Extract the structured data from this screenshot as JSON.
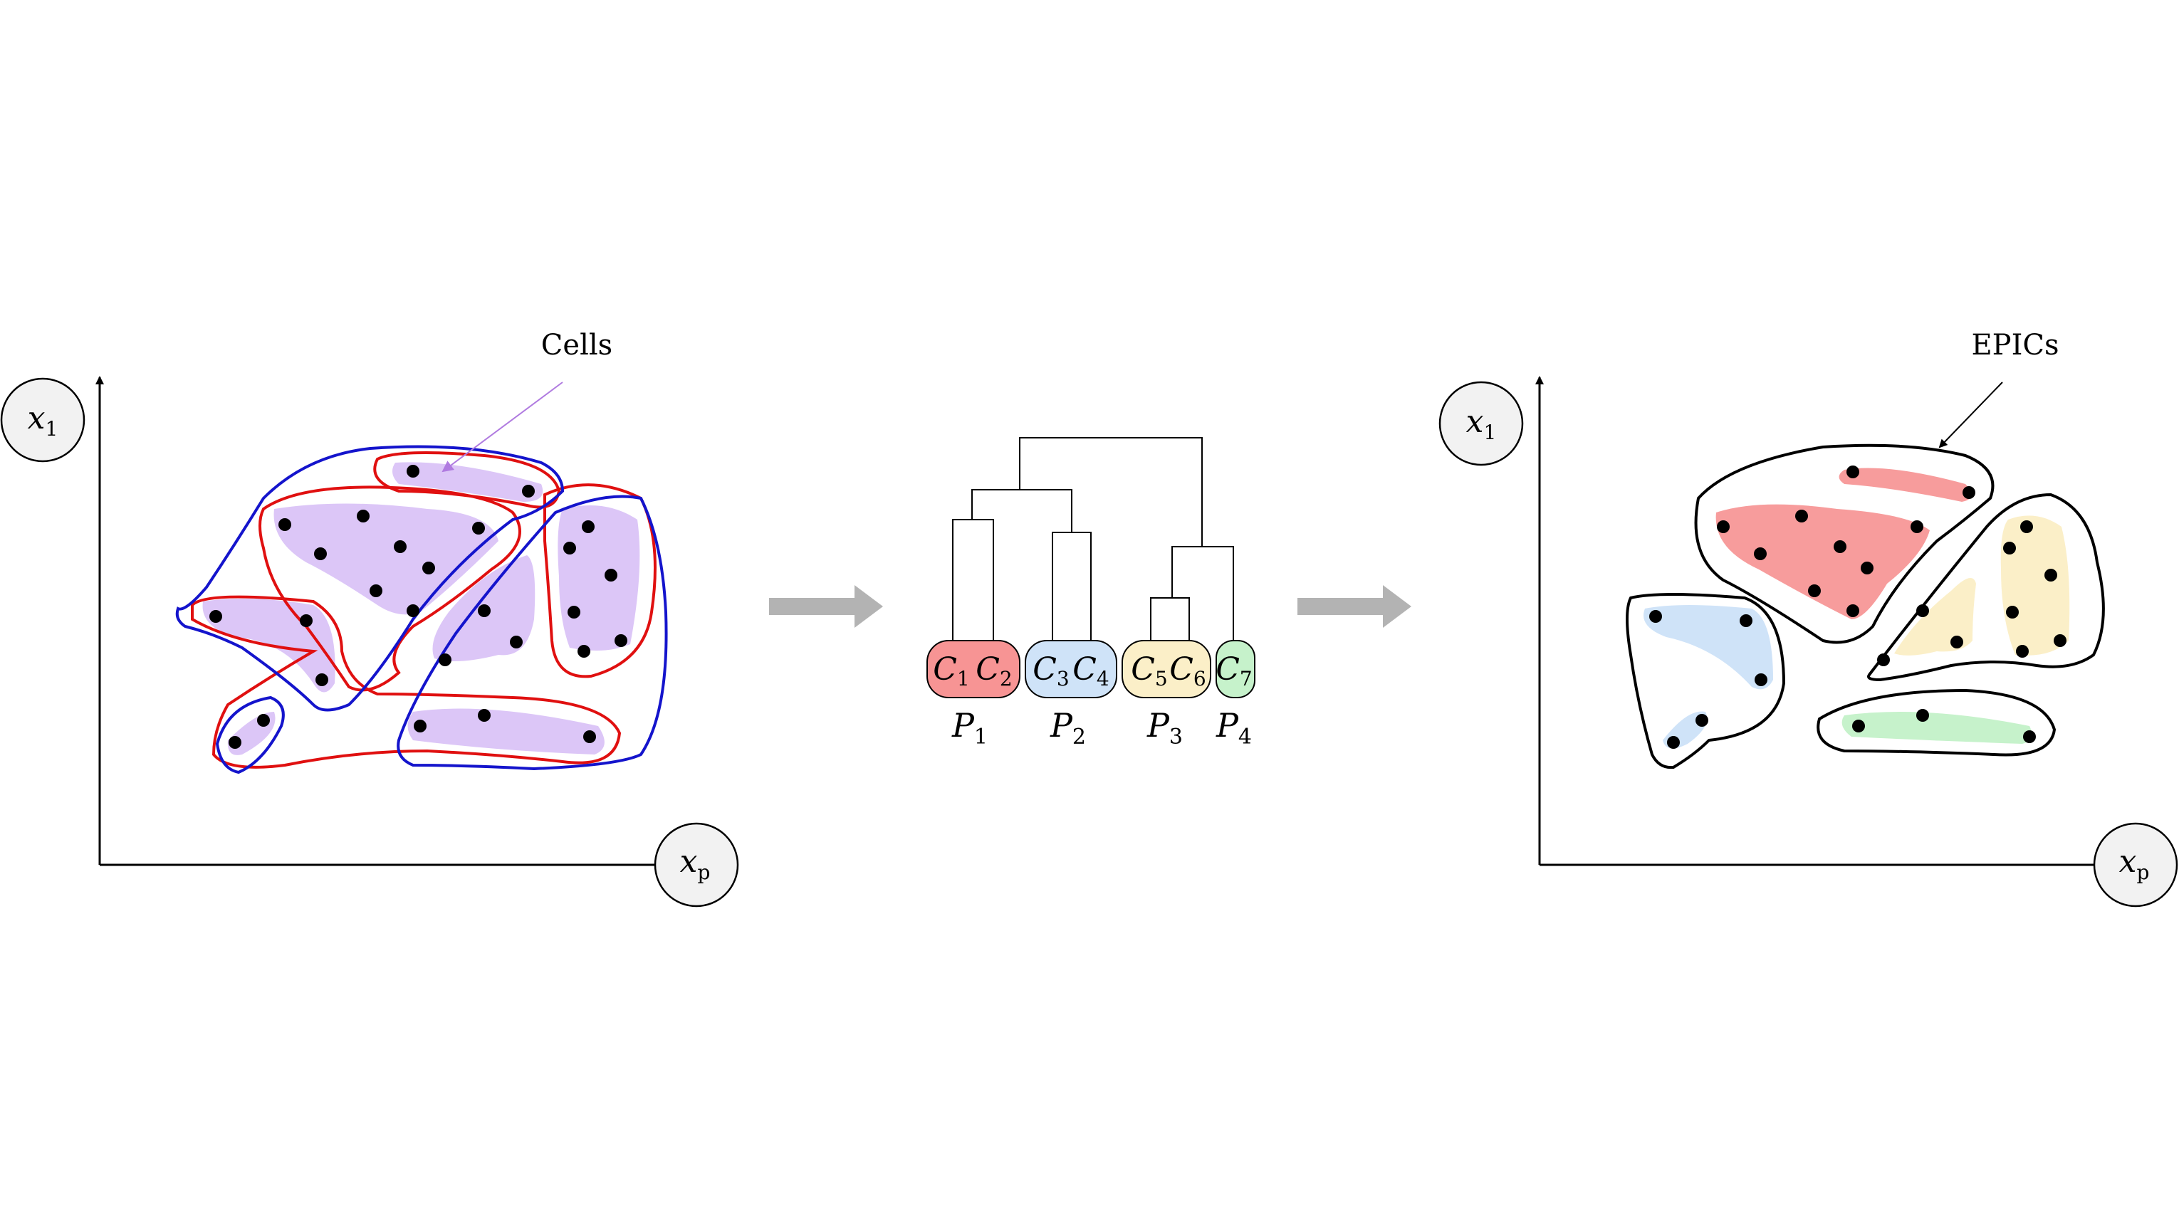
{
  "left_panel": {
    "y_axis_label": "x",
    "y_axis_sub": "1",
    "x_axis_label": "x",
    "x_axis_sub": "p",
    "annotation": "Cells",
    "colors": {
      "cell_fill": "#dcc6f7",
      "red_partition": "#e01010",
      "blue_partition": "#1414cc",
      "arrow": "#b07be0"
    }
  },
  "dendrogram": {
    "clusters": [
      {
        "label": "C",
        "sub": "1",
        "color": "#f79494"
      },
      {
        "label": "C",
        "sub": "2",
        "color": "#f79494"
      },
      {
        "label": "C",
        "sub": "3",
        "color": "#cfe3f8"
      },
      {
        "label": "C",
        "sub": "4",
        "color": "#cfe3f8"
      },
      {
        "label": "C",
        "sub": "5",
        "color": "#fbefc8"
      },
      {
        "label": "C",
        "sub": "6",
        "color": "#fbefc8"
      },
      {
        "label": "C",
        "sub": "7",
        "color": "#c6f2cb"
      }
    ],
    "partitions": [
      {
        "label": "P",
        "sub": "1"
      },
      {
        "label": "P",
        "sub": "2"
      },
      {
        "label": "P",
        "sub": "3"
      },
      {
        "label": "P",
        "sub": "4"
      }
    ]
  },
  "right_panel": {
    "y_axis_label": "x",
    "y_axis_sub": "1",
    "x_axis_label": "x",
    "x_axis_sub": "p",
    "annotation": "EPICs",
    "colors": {
      "red": "#f79c9c",
      "blue": "#cfe3f8",
      "yellow": "#fbefc8",
      "green": "#c6f2cb"
    }
  },
  "flow_arrow_color": "#b3b3b3"
}
